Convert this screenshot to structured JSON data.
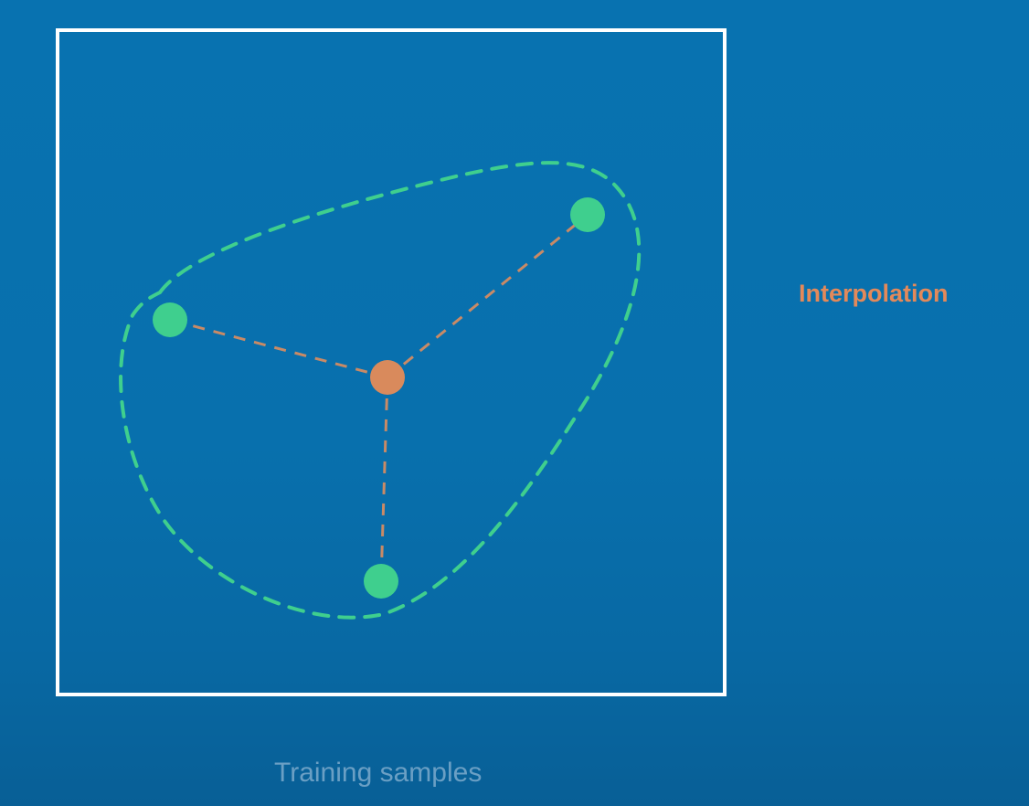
{
  "labels": {
    "interpolation": "Interpolation",
    "caption": "Training samples"
  },
  "colors": {
    "background": "#0870ad",
    "frame": "#ffffff",
    "training_point": "#3fcf8e",
    "hull_outline": "#3fcf8e",
    "interpolated_point": "#d98a5c",
    "connector": "#c98a66",
    "interpolation_text": "#e3895a",
    "caption_text": "#6a9fc4"
  },
  "diagram": {
    "training_point_count": 3,
    "interpolated_point_count": 1,
    "hull_style": "dashed",
    "connector_style": "dashed"
  }
}
